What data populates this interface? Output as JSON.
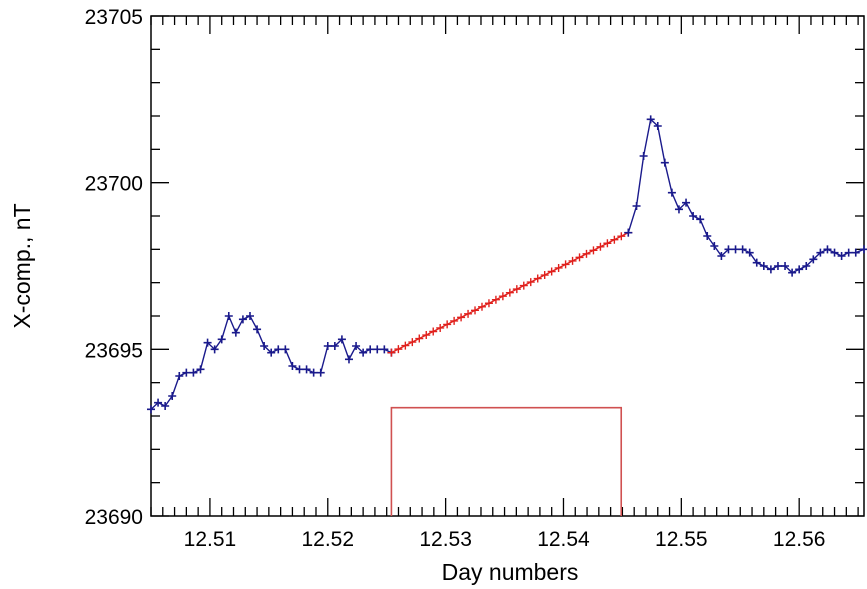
{
  "chart_data": {
    "type": "line",
    "title": "",
    "xlabel": "Day numbers",
    "ylabel": "X-comp., nT",
    "xlim": [
      12.505,
      12.5655
    ],
    "ylim": [
      23690,
      23705
    ],
    "x_ticks": [
      12.51,
      12.52,
      12.53,
      12.54,
      12.55,
      12.56
    ],
    "x_tick_labels": [
      "12.51",
      "12.52",
      "12.53",
      "12.54",
      "12.55",
      "12.56"
    ],
    "y_ticks": [
      23690,
      23695,
      23700,
      23705
    ],
    "y_tick_labels": [
      "23690",
      "23695",
      "23700",
      "23705"
    ],
    "grid": false,
    "colors": {
      "observed": "#1a1a8c",
      "interpolated": "#e0201c",
      "box": "#d05050"
    },
    "series": [
      {
        "values_x": [
          12.505,
          12.5056,
          12.5062,
          12.5068,
          12.5074,
          12.508,
          12.5086,
          12.5092,
          12.5098,
          12.5104,
          12.511,
          12.5116,
          12.5122,
          12.5128,
          12.5134,
          12.514,
          12.5146,
          12.5152,
          12.5158,
          12.5164,
          12.517,
          12.5176,
          12.5182,
          12.5188,
          12.5194,
          12.52,
          12.5206,
          12.5212,
          12.5218,
          12.5224,
          12.523,
          12.5236,
          12.5242,
          12.5248,
          12.5254
        ],
        "values_y": [
          23693.2,
          23693.4,
          23693.3,
          23693.6,
          23694.2,
          23694.3,
          23694.3,
          23694.4,
          23695.2,
          23695.0,
          23695.3,
          23696.0,
          23695.5,
          23695.9,
          23696.0,
          23695.6,
          23695.1,
          23694.9,
          23695.0,
          23695.0,
          23694.5,
          23694.4,
          23694.4,
          23694.3,
          23694.3,
          23695.1,
          23695.1,
          23695.3,
          23694.7,
          23695.1,
          23694.9,
          23695.0,
          23695.0,
          23695.0,
          23694.9
        ]
      },
      {
        "values_x": [
          12.5254,
          12.5455
        ],
        "values_y": [
          23694.9,
          23698.5
        ]
      },
      {
        "values_x": [
          12.5455,
          12.5462,
          12.5468,
          12.5474,
          12.548,
          12.5486,
          12.5492,
          12.5498,
          12.5504,
          12.551,
          12.5516,
          12.5522,
          12.5528,
          12.5534,
          12.554,
          12.5546,
          12.5552,
          12.5558,
          12.5564,
          12.557,
          12.5576,
          12.5582,
          12.5588,
          12.5594,
          12.56,
          12.5606,
          12.5612,
          12.5618,
          12.5624,
          12.563,
          12.5636,
          12.5642,
          12.5648,
          12.5655
        ],
        "values_y": [
          23698.5,
          23699.3,
          23700.8,
          23701.9,
          23701.7,
          23700.6,
          23699.7,
          23699.2,
          23699.4,
          23699.0,
          23698.9,
          23698.4,
          23698.1,
          23697.8,
          23698.0,
          23698.0,
          23698.0,
          23697.9,
          23697.6,
          23697.5,
          23697.4,
          23697.5,
          23697.5,
          23697.3,
          23697.4,
          23697.5,
          23697.7,
          23697.9,
          23698.0,
          23697.9,
          23697.8,
          23697.9,
          23697.9,
          23698.0
        ]
      }
    ],
    "annotations": [
      {
        "type": "bracket",
        "x0": 12.5254,
        "x1": 12.5449,
        "y_top": 23693.25
      }
    ]
  }
}
